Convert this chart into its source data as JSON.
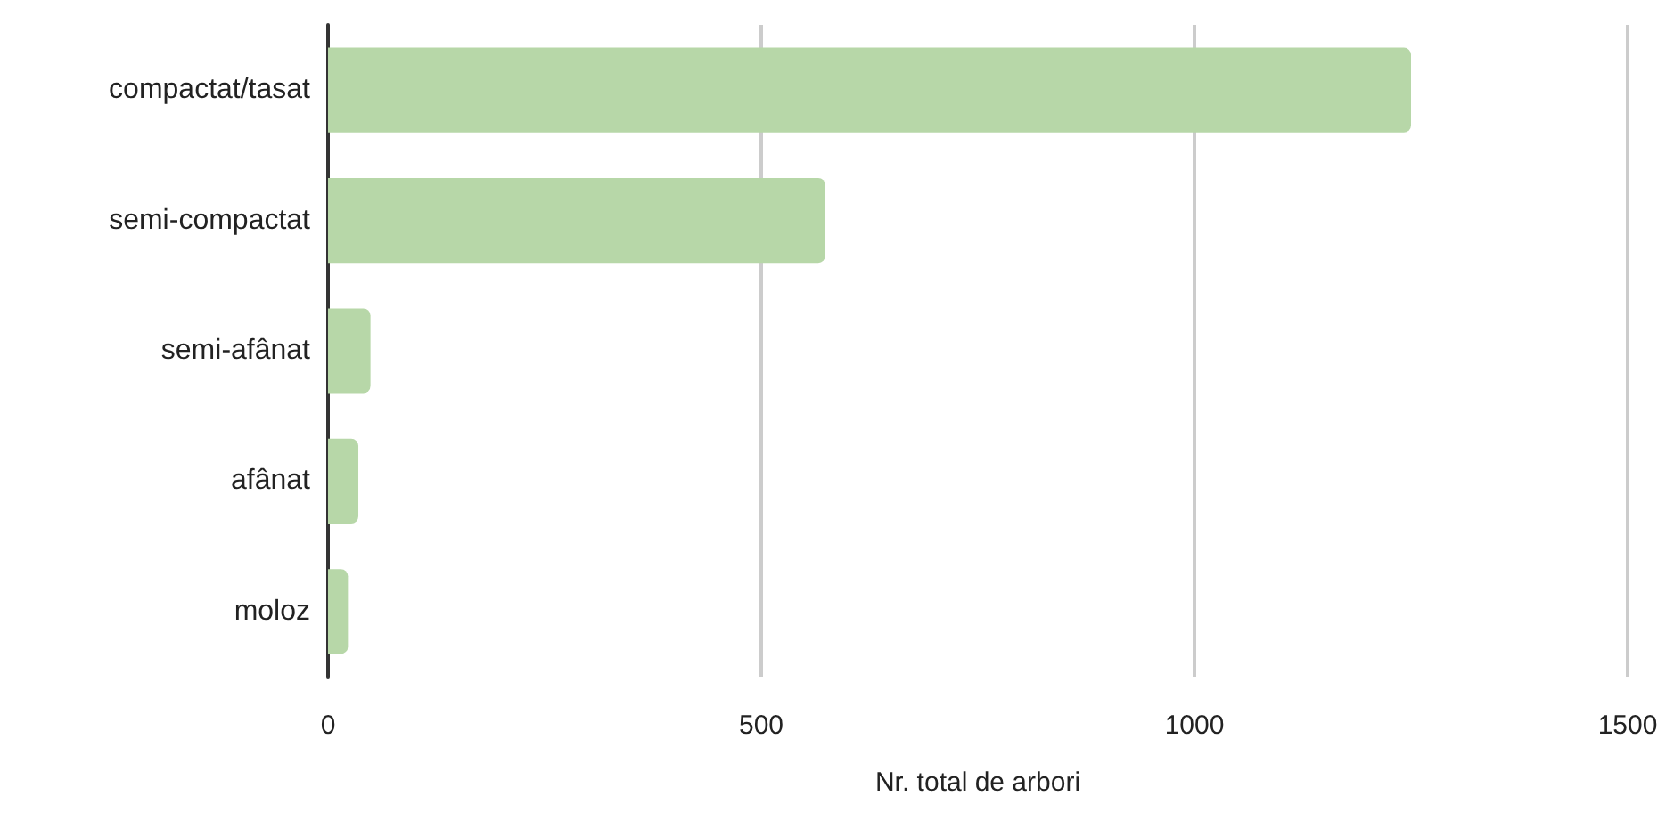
{
  "chart_data": {
    "type": "bar",
    "orientation": "horizontal",
    "xlabel": "Nr. total de arbori",
    "categories": [
      "compactat/tasat",
      "semi-compactat",
      "semi-afânat",
      "afânat",
      "moloz"
    ],
    "values": [
      1250,
      574,
      49,
      35,
      23
    ],
    "color": "#b7d7a8",
    "xlim": [
      0,
      1500
    ],
    "xticks": [
      0,
      500,
      1000,
      1500
    ],
    "grid": "x"
  }
}
